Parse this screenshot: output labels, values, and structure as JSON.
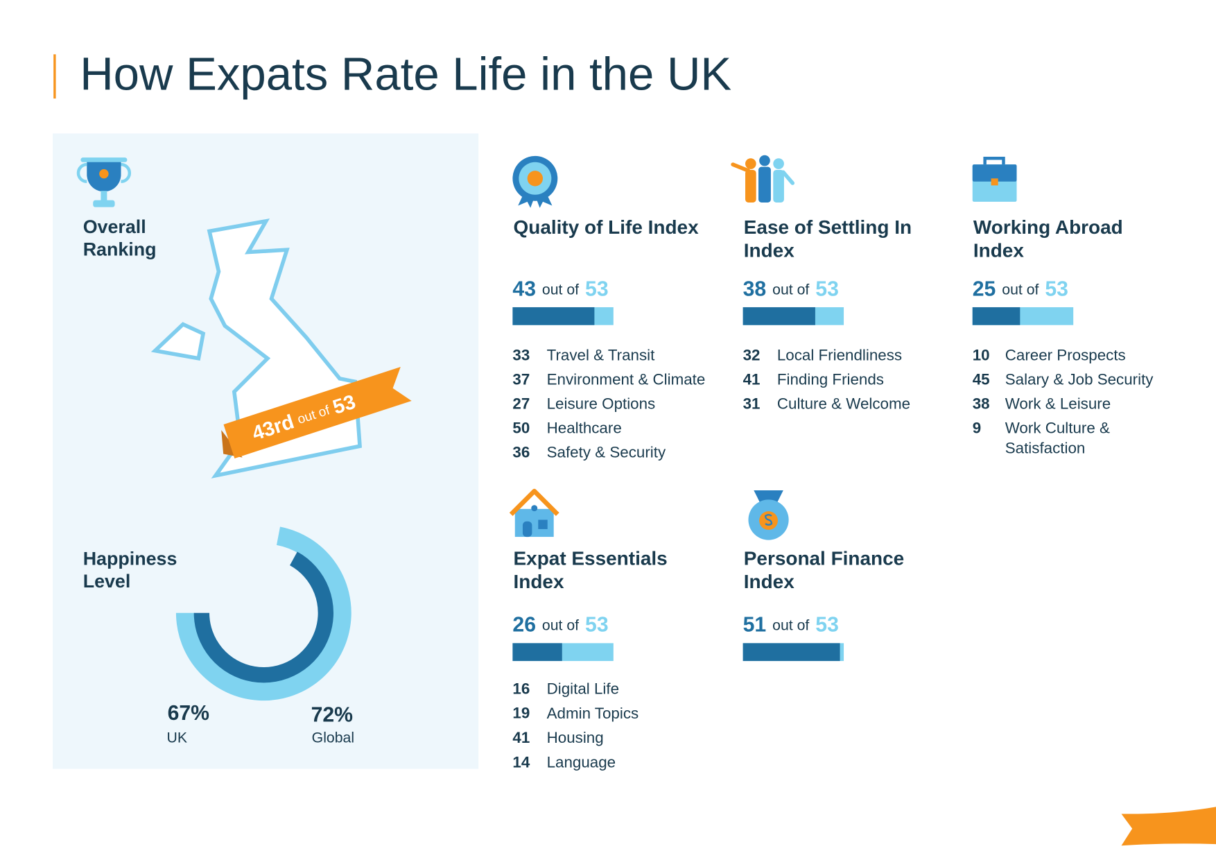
{
  "title": "How Expats Rate Life in the UK",
  "rank_connector": "out of",
  "total": 53,
  "overall_ranking": {
    "heading": "Overall Ranking",
    "rank": "43rd"
  },
  "happiness": {
    "heading": "Happiness Level",
    "uk": {
      "value": 67,
      "label": "67%",
      "name": "UK"
    },
    "global": {
      "value": 72,
      "label": "72%",
      "name": "Global"
    }
  },
  "indices": [
    {
      "title": "Quality of Life Index",
      "rank": 43,
      "subindices": [
        {
          "rank": 33,
          "name": "Travel & Transit"
        },
        {
          "rank": 37,
          "name": "Environment & Climate"
        },
        {
          "rank": 27,
          "name": "Leisure Options"
        },
        {
          "rank": 50,
          "name": "Healthcare"
        },
        {
          "rank": 36,
          "name": "Safety & Security"
        }
      ]
    },
    {
      "title": "Ease of Settling In Index",
      "rank": 38,
      "subindices": [
        {
          "rank": 32,
          "name": "Local Friendliness"
        },
        {
          "rank": 41,
          "name": "Finding Friends"
        },
        {
          "rank": 31,
          "name": "Culture & Welcome"
        }
      ]
    },
    {
      "title": "Working Abroad Index",
      "rank": 25,
      "subindices": [
        {
          "rank": 10,
          "name": "Career Prospects"
        },
        {
          "rank": 45,
          "name": "Salary & Job Security"
        },
        {
          "rank": 38,
          "name": "Work & Leisure"
        },
        {
          "rank": 9,
          "name": "Work Culture & Satisfaction"
        }
      ]
    },
    {
      "title": "Expat Essentials Index",
      "rank": 26,
      "subindices": [
        {
          "rank": 16,
          "name": "Digital Life"
        },
        {
          "rank": 19,
          "name": "Admin Topics"
        },
        {
          "rank": 41,
          "name": "Housing"
        },
        {
          "rank": 14,
          "name": "Language"
        }
      ]
    },
    {
      "title": "Personal Finance Index",
      "rank": 51,
      "subindices": []
    }
  ]
}
